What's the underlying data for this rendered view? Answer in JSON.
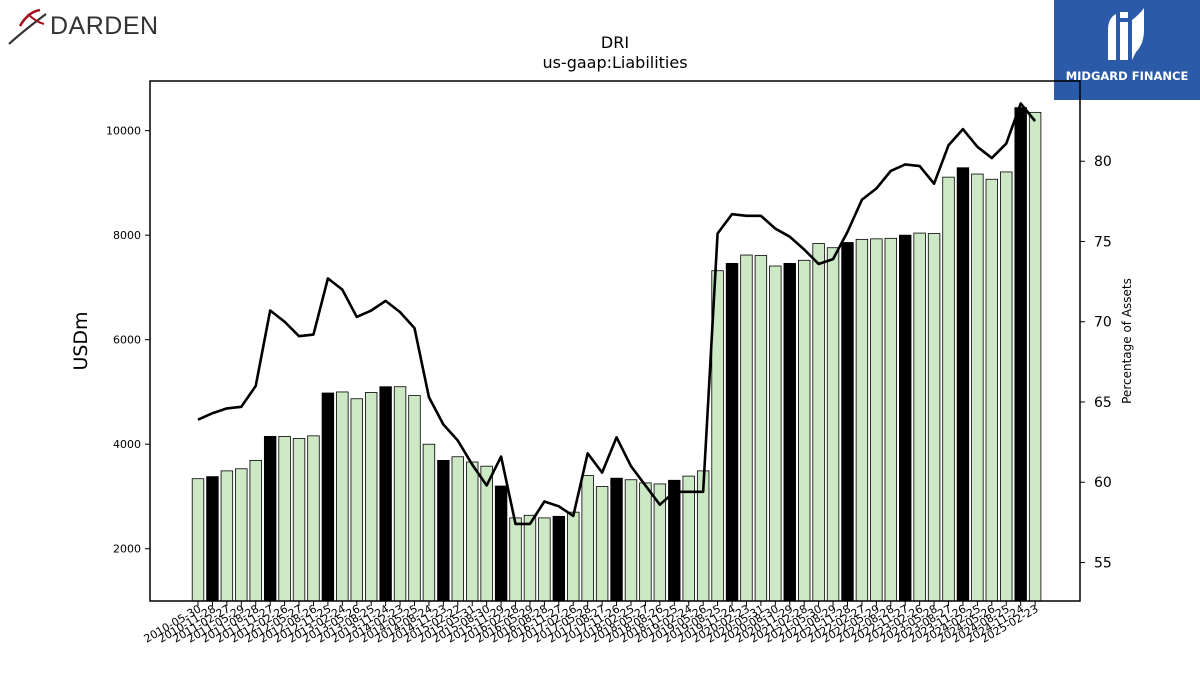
{
  "header": {
    "logo_left_text": "DARDEN",
    "logo_right_text": "MIDGARD FINANCE"
  },
  "chart_data": {
    "type": "bar",
    "title": "DRI",
    "subtitle": "us-gaap:Liabilities",
    "ylabel": "USDm",
    "y2label": "Percentage of Assets",
    "ylim": [
      1000,
      10950
    ],
    "y2lim": [
      52.6,
      85
    ],
    "yticks": [
      2000,
      4000,
      6000,
      8000,
      10000
    ],
    "y2ticks": [
      55,
      60,
      65,
      70,
      75,
      80
    ],
    "colors": {
      "bar_light": "#cce8c5",
      "bar_dark": "#000000",
      "line": "#000000"
    },
    "categories": [
      "2010-05-30",
      "2010-11-28",
      "2011-02-27",
      "2011-05-29",
      "2011-08-28",
      "2011-11-27",
      "2012-02-26",
      "2012-05-27",
      "2012-08-26",
      "2012-11-25",
      "2013-02-24",
      "2013-05-26",
      "2013-08-25",
      "2013-11-24",
      "2014-02-23",
      "2014-05-25",
      "2014-08-24",
      "2014-11-23",
      "2015-02-22",
      "2015-05-31",
      "2015-08-30",
      "2015-11-29",
      "2016-02-28",
      "2016-05-29",
      "2016-08-28",
      "2016-11-27",
      "2017-02-26",
      "2017-05-28",
      "2017-08-27",
      "2017-11-26",
      "2018-02-25",
      "2018-05-27",
      "2018-08-26",
      "2018-11-25",
      "2019-02-24",
      "2019-05-26",
      "2019-08-25",
      "2019-11-24",
      "2020-02-23",
      "2020-05-31",
      "2020-08-30",
      "2020-11-29",
      "2021-02-28",
      "2021-05-30",
      "2021-08-29",
      "2021-11-28",
      "2022-02-27",
      "2022-05-29",
      "2022-08-28",
      "2022-11-27",
      "2023-02-26",
      "2023-05-28",
      "2023-08-27",
      "2023-11-26",
      "2024-02-25",
      "2024-05-26",
      "2024-08-25",
      "2024-11-24",
      "2025-02-23"
    ],
    "values": [
      3340,
      3380,
      3490,
      3530,
      3690,
      4150,
      4150,
      4110,
      4160,
      4980,
      5000,
      4870,
      4990,
      5100,
      5100,
      4930,
      4000,
      3690,
      3760,
      3660,
      3580,
      3200,
      2590,
      2640,
      2590,
      2620,
      2700,
      3400,
      3190,
      3350,
      3320,
      3260,
      3240,
      3310,
      3390,
      3490,
      7320,
      7460,
      7620,
      7610,
      7410,
      7460,
      7520,
      7840,
      7760,
      7860,
      7920,
      7930,
      7940,
      8000,
      8040,
      8030,
      9110,
      9290,
      9170,
      9070,
      9210,
      10440,
      10350
    ],
    "pct_of_assets": [
      63.9,
      64.3,
      64.6,
      64.7,
      66.0,
      70.7,
      70.0,
      69.1,
      69.2,
      72.7,
      72.0,
      70.3,
      70.7,
      71.3,
      70.6,
      69.6,
      65.3,
      63.6,
      62.6,
      61.1,
      59.8,
      61.6,
      57.4,
      57.4,
      58.8,
      58.5,
      57.9,
      61.8,
      60.6,
      62.8,
      61.0,
      59.8,
      58.6,
      59.4,
      59.4,
      59.4,
      75.5,
      76.7,
      76.6,
      76.6,
      75.8,
      75.3,
      74.5,
      73.6,
      73.9,
      75.6,
      77.6,
      78.3,
      79.4,
      79.8,
      79.7,
      78.6,
      81.0,
      82.0,
      80.9,
      80.2,
      81.1,
      83.6,
      82.5
    ],
    "dark_indices": [
      1,
      5,
      9,
      13,
      17,
      21,
      25,
      29,
      33,
      37,
      41,
      45,
      49,
      53,
      57
    ]
  }
}
